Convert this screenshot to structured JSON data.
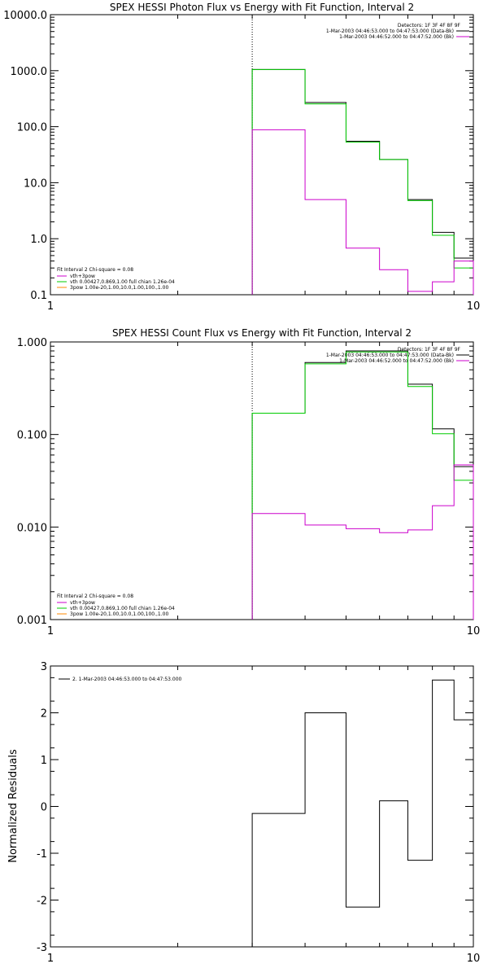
{
  "chart_data": [
    {
      "type": "line",
      "title": "SPEX HESSI Photon Flux vs Energy with Fit Function, Interval 2",
      "xlabel": "",
      "ylabel": "",
      "xscale": "log",
      "yscale": "log",
      "xlim": [
        1,
        10
      ],
      "ylim": [
        0.1,
        10000
      ],
      "x_tick_labels": [
        "1",
        "10"
      ],
      "y_tick_labels": [
        "0.1",
        "1.0",
        "10.0",
        "100.0",
        "1000.0",
        "10000.0"
      ],
      "marker_x": 3,
      "legend_top_right": {
        "detectors": "Detectors: 1F 3F 4F 8F 9F",
        "entries": [
          {
            "text": "1-Mar-2003 04:46:53.000 to 04:47:53.000 (Data-Bk)",
            "color": "#000000"
          },
          {
            "text": "1-Mar-2003 04:46:52.000 to 04:47:52.000 (Bk)",
            "color": "#cc00cc"
          }
        ]
      },
      "legend_bottom_left": {
        "header": "Fit Interval 2   Chi-square = 0.08",
        "entries": [
          {
            "text": "vth+3pow",
            "color": "#cc00cc"
          },
          {
            "text": "vth 0.00427,0.869,1.00   full chian 1.26e-04",
            "color": "#00cc00"
          },
          {
            "text": "3pow 1.00e-20,1.00,10.0,1.00,100.,1.00",
            "color": "#ff8800"
          }
        ]
      },
      "bin_edges": [
        3,
        4,
        5,
        6,
        7,
        8,
        9,
        10
      ],
      "series": [
        {
          "color": "#000000",
          "values": [
            1050,
            270,
            55,
            26,
            5,
            1.3,
            0.45
          ]
        },
        {
          "color": "#00cc00",
          "values": [
            1050,
            255,
            53,
            26,
            4.8,
            1.15,
            0.3
          ]
        },
        {
          "color": "#cc00cc",
          "values": [
            88,
            5,
            0.68,
            0.28,
            0.115,
            0.17,
            0.4
          ]
        }
      ]
    },
    {
      "type": "line",
      "title": "SPEX HESSI Count Flux vs Energy with Fit Function, Interval 2",
      "xlabel": "",
      "ylabel": "",
      "xscale": "log",
      "yscale": "log",
      "xlim": [
        1,
        10
      ],
      "ylim": [
        0.001,
        1
      ],
      "x_tick_labels": [
        "1",
        "10"
      ],
      "y_tick_labels": [
        "0.001",
        "0.010",
        "0.100",
        "1.000"
      ],
      "marker_x": 3,
      "legend_top_right": {
        "detectors": "Detectors: 1F 3F 4F 8F 9F",
        "entries": [
          {
            "text": "1-Mar-2003 04:46:53.000 to 04:47:53.000 (Data-Bk)",
            "color": "#000000"
          },
          {
            "text": "1-Mar-2003 04:46:52.000 to 04:47:52.000 (Bk)",
            "color": "#cc00cc"
          }
        ]
      },
      "legend_bottom_left": {
        "header": "Fit Interval 2   Chi-square = 0.08",
        "entries": [
          {
            "text": "vth+3pow",
            "color": "#cc00cc"
          },
          {
            "text": "vth 0.00427,0.869,1.00   full chian 1.26e-04",
            "color": "#00cc00"
          },
          {
            "text": "3pow 1.00e-20,1.00,10.0,1.00,100.,1.00",
            "color": "#ff8800"
          }
        ]
      },
      "bin_edges": [
        3,
        4,
        5,
        6,
        7,
        8,
        9,
        10
      ],
      "series": [
        {
          "color": "#000000",
          "values": [
            0.17,
            0.6,
            0.8,
            0.8,
            0.35,
            0.115,
            0.045
          ]
        },
        {
          "color": "#00cc00",
          "values": [
            0.17,
            0.58,
            0.78,
            0.78,
            0.33,
            0.102,
            0.032
          ]
        },
        {
          "color": "#cc00cc",
          "values": [
            0.014,
            0.0105,
            0.0096,
            0.0087,
            0.0093,
            0.017,
            0.047
          ]
        }
      ]
    },
    {
      "type": "line",
      "title": "",
      "xlabel": "",
      "ylabel": "Normalized Residuals",
      "xscale": "log",
      "yscale": "linear",
      "xlim": [
        1,
        10
      ],
      "ylim": [
        -3,
        3
      ],
      "x_tick_labels": [
        "1",
        "10"
      ],
      "y_tick_labels": [
        "-3",
        "-2",
        "-1",
        "0",
        "1",
        "2",
        "3"
      ],
      "legend": {
        "text": "2.  1-Mar-2003 04:46:53.000 to 04:47:53.000",
        "color": "#000000"
      },
      "bin_edges": [
        3,
        4,
        5,
        6,
        7,
        8,
        9,
        10
      ],
      "series": [
        {
          "color": "#000000",
          "values": [
            -0.15,
            2.0,
            -2.15,
            0.12,
            -1.15,
            2.7,
            1.85
          ]
        }
      ]
    }
  ]
}
